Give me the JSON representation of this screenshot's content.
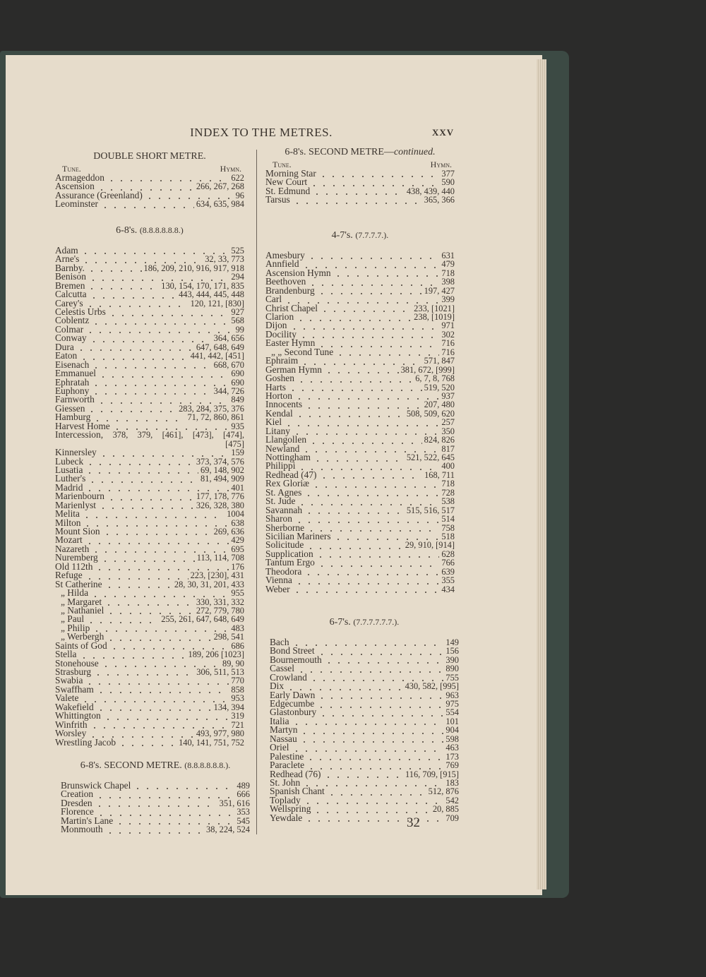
{
  "running_title": "INDEX TO THE METRES.",
  "page_roman": "XXV",
  "page_number": "32",
  "col_headers": {
    "tune": "Tune.",
    "hymn": "Hymn."
  },
  "left_sections": [
    {
      "title": "DOUBLE SHORT METRE.",
      "metre": "",
      "show_headers": true,
      "rows": [
        {
          "name": "Armageddon",
          "hymns": "622"
        },
        {
          "name": "Ascension",
          "hymns": "266, 267, 268"
        },
        {
          "name": "Assurance (Greenland)",
          "hymns": "96"
        },
        {
          "name": "Leominster",
          "hymns": "634, 635, 984"
        }
      ]
    },
    {
      "title": "6-8's.",
      "metre": "(8.8.8.8.8.8.)",
      "show_headers": false,
      "rows": [
        {
          "name": "Adam",
          "hymns": "525"
        },
        {
          "name": "Arne's",
          "hymns": "32, 33, 773"
        },
        {
          "name": "Barnby.",
          "hymns": "186, 209, 210, 916, 917, 918"
        },
        {
          "name": "Benison",
          "hymns": "294"
        },
        {
          "name": "Bremen",
          "hymns": "130, 154, 170, 171, 835"
        },
        {
          "name": "Calcutta",
          "hymns": "443, 444, 445, 448"
        },
        {
          "name": "Carey's",
          "hymns": "120, 121, [830]"
        },
        {
          "name": "Celestis Urbs",
          "hymns": "927"
        },
        {
          "name": "Coblentz",
          "hymns": "568"
        },
        {
          "name": "Colmar",
          "hymns": "99"
        },
        {
          "name": "Conway",
          "hymns": "364, 656"
        },
        {
          "name": "Dura",
          "hymns": "647, 648, 649"
        },
        {
          "name": "Eaton",
          "hymns": "441, 442, [451]"
        },
        {
          "name": "Eisenach",
          "hymns": "668, 670"
        },
        {
          "name": "Emmanuel",
          "hymns": "690"
        },
        {
          "name": "Ephratah",
          "hymns": "690"
        },
        {
          "name": "Euphony",
          "hymns": "344, 726"
        },
        {
          "name": "Farnworth",
          "hymns": "849"
        },
        {
          "name": "Giessen",
          "hymns": "283, 284, 375, 376"
        },
        {
          "name": "Hamburg",
          "hymns": "71, 72, 860, 861"
        },
        {
          "name": "Harvest Home",
          "hymns": "935"
        },
        {
          "name": "Intercession,",
          "hymns": "378, 379, [461], [473], [474], [475]"
        },
        {
          "name": "Kinnersley",
          "hymns": "159"
        },
        {
          "name": "Lubeck",
          "hymns": "373, 374, 576"
        },
        {
          "name": "Lusatia",
          "hymns": "69, 148, 902"
        },
        {
          "name": "Luther's",
          "hymns": "81, 494, 909"
        },
        {
          "name": "Madrid",
          "hymns": "401"
        },
        {
          "name": "Marienbourn",
          "hymns": "177, 178, 776"
        },
        {
          "name": "Marienlyst",
          "hymns": "326, 328, 380"
        },
        {
          "name": "Melita",
          "hymns": "1004"
        },
        {
          "name": "Milton",
          "hymns": "638"
        },
        {
          "name": "Mount Sion",
          "hymns": "269, 636"
        },
        {
          "name": "Mozart",
          "hymns": "429"
        },
        {
          "name": "Nazareth",
          "hymns": "695"
        },
        {
          "name": "Nuremberg",
          "hymns": "113, 114, 708"
        },
        {
          "name": "Old 112th",
          "hymns": "176"
        },
        {
          "name": "Refuge",
          "hymns": "223, [230], 431"
        },
        {
          "name": "St Catherine",
          "hymns": "28, 30, 31, 201, 433"
        },
        {
          "name": "„ Hilda",
          "hymns": "955"
        },
        {
          "name": "„ Margaret",
          "hymns": "330, 331, 332"
        },
        {
          "name": "„ Nathaniel",
          "hymns": "272, 779, 780"
        },
        {
          "name": "„ Paul",
          "hymns": "255, 261, 647, 648, 649"
        },
        {
          "name": "„ Philip",
          "hymns": "483"
        },
        {
          "name": "„ Werbergh",
          "hymns": "298, 541"
        },
        {
          "name": "Saints of God",
          "hymns": "686"
        },
        {
          "name": "Stella",
          "hymns": "189, 206 [1023]"
        },
        {
          "name": "Stonehouse",
          "hymns": "89, 90"
        },
        {
          "name": "Strasburg",
          "hymns": "306, 511, 513"
        },
        {
          "name": "Swabia",
          "hymns": "770"
        },
        {
          "name": "Swaffham",
          "hymns": "858"
        },
        {
          "name": "Valete",
          "hymns": "953"
        },
        {
          "name": "Wakefield",
          "hymns": "134, 394"
        },
        {
          "name": "Whittington",
          "hymns": "319"
        },
        {
          "name": "Winfrith",
          "hymns": "721"
        },
        {
          "name": "Worsley",
          "hymns": "493, 977, 980"
        },
        {
          "name": "Wrestling Jacob",
          "hymns": "140, 141, 751, 752"
        }
      ]
    },
    {
      "title": "6-8's. SECOND METRE.",
      "metre": "(8.8.8.8.8.8.).",
      "show_headers": false,
      "rows": [
        {
          "name": "Brunswick Chapel",
          "hymns": "489"
        },
        {
          "name": "Creation",
          "hymns": "666"
        },
        {
          "name": "Dresden",
          "hymns": "351, 616"
        },
        {
          "name": "Florence",
          "hymns": "353"
        },
        {
          "name": "Martin's Lane",
          "hymns": "545"
        },
        {
          "name": "Monmouth",
          "hymns": "38, 224, 524"
        }
      ]
    }
  ],
  "right_sections": [
    {
      "title": "6-8's. SECOND METRE—",
      "title_italic": "continued.",
      "metre": "",
      "show_headers": true,
      "rows": [
        {
          "name": "Morning Star",
          "hymns": "377"
        },
        {
          "name": "New Court",
          "hymns": "590"
        },
        {
          "name": "St. Edmund",
          "hymns": "438, 439, 440"
        },
        {
          "name": "Tarsus",
          "hymns": "365, 366"
        }
      ]
    },
    {
      "title": "4-7's.",
      "metre": "(7.7.7.7.).",
      "show_headers": false,
      "rows": [
        {
          "name": "Amesbury",
          "hymns": "631"
        },
        {
          "name": "Annfield",
          "hymns": "479"
        },
        {
          "name": "Ascension Hymn",
          "hymns": "718"
        },
        {
          "name": "Beethoven",
          "hymns": "398"
        },
        {
          "name": "Brandenburg",
          "hymns": "197, 427"
        },
        {
          "name": "Carl",
          "hymns": "399"
        },
        {
          "name": "Christ Chapel",
          "hymns": "233, [1021]"
        },
        {
          "name": "Clarion",
          "hymns": "238, [1019]"
        },
        {
          "name": "Dijon",
          "hymns": "971"
        },
        {
          "name": "Docility",
          "hymns": "302"
        },
        {
          "name": "Easter Hymn",
          "hymns": "716"
        },
        {
          "name": "„ „ Second Tune",
          "hymns": "716"
        },
        {
          "name": "Ephraim",
          "hymns": "571, 847"
        },
        {
          "name": "German Hymn",
          "hymns": "381, 672, [999]"
        },
        {
          "name": "Goshen",
          "hymns": "6, 7, 8, 768"
        },
        {
          "name": "Harts",
          "hymns": "519, 520"
        },
        {
          "name": "Horton",
          "hymns": "937"
        },
        {
          "name": "Innocents",
          "hymns": "207, 480"
        },
        {
          "name": "Kendal",
          "hymns": "508, 509, 620"
        },
        {
          "name": "Kiel",
          "hymns": "257"
        },
        {
          "name": "Litany",
          "hymns": "350"
        },
        {
          "name": "Llangollen",
          "hymns": "824, 826"
        },
        {
          "name": "Newland",
          "hymns": "817"
        },
        {
          "name": "Nottingham",
          "hymns": "521, 522, 645"
        },
        {
          "name": "Philippi",
          "hymns": "400"
        },
        {
          "name": "Redhead (47)",
          "hymns": "168, 711"
        },
        {
          "name": "Rex Gloriæ",
          "hymns": "718"
        },
        {
          "name": "St. Agnes",
          "hymns": "728"
        },
        {
          "name": "St. Jude",
          "hymns": "538"
        },
        {
          "name": "Savannah",
          "hymns": "515, 516, 517"
        },
        {
          "name": "Sharon",
          "hymns": "514"
        },
        {
          "name": "Sherborne",
          "hymns": "758"
        },
        {
          "name": "Sicilian Mariners",
          "hymns": "518"
        },
        {
          "name": "Solicitude",
          "hymns": "29, 910, [914]"
        },
        {
          "name": "Supplication",
          "hymns": "628"
        },
        {
          "name": "Tantum Ergo",
          "hymns": "766"
        },
        {
          "name": "Theodora",
          "hymns": "639"
        },
        {
          "name": "Vienna",
          "hymns": "355"
        },
        {
          "name": "Weber",
          "hymns": "434"
        }
      ]
    },
    {
      "title": "6-7's.",
      "metre": "(7.7.7.7.7.7.).",
      "show_headers": false,
      "rows": [
        {
          "name": "Bach",
          "hymns": "149"
        },
        {
          "name": "Bond Street",
          "hymns": "156"
        },
        {
          "name": "Bournemouth",
          "hymns": "390"
        },
        {
          "name": "Cassel",
          "hymns": "890"
        },
        {
          "name": "Crowland",
          "hymns": "755"
        },
        {
          "name": "Dix",
          "hymns": "430, 582, [995]"
        },
        {
          "name": "Early Dawn",
          "hymns": "963"
        },
        {
          "name": "Edgecumbe",
          "hymns": "975"
        },
        {
          "name": "Glastonbury",
          "hymns": "554"
        },
        {
          "name": "Italia",
          "hymns": "101"
        },
        {
          "name": "Martyn",
          "hymns": "904"
        },
        {
          "name": "Nassau",
          "hymns": "598"
        },
        {
          "name": "Oriel",
          "hymns": "463"
        },
        {
          "name": "Palestine",
          "hymns": "173"
        },
        {
          "name": "Paraclete",
          "hymns": "769"
        },
        {
          "name": "Redhead (76)",
          "hymns": "116, 709, [915]"
        },
        {
          "name": "St. John",
          "hymns": "183"
        },
        {
          "name": "Spanish Chant",
          "hymns": "512, 876"
        },
        {
          "name": "Toplady",
          "hymns": "542"
        },
        {
          "name": "Wellspring",
          "hymns": "20, 885"
        },
        {
          "name": "Yewdale",
          "hymns": "709"
        }
      ]
    }
  ],
  "colors": {
    "background": "#2b2b2a",
    "paper": "#e6dccb",
    "ink": "#3a332d",
    "cover": "#3c4a44"
  }
}
